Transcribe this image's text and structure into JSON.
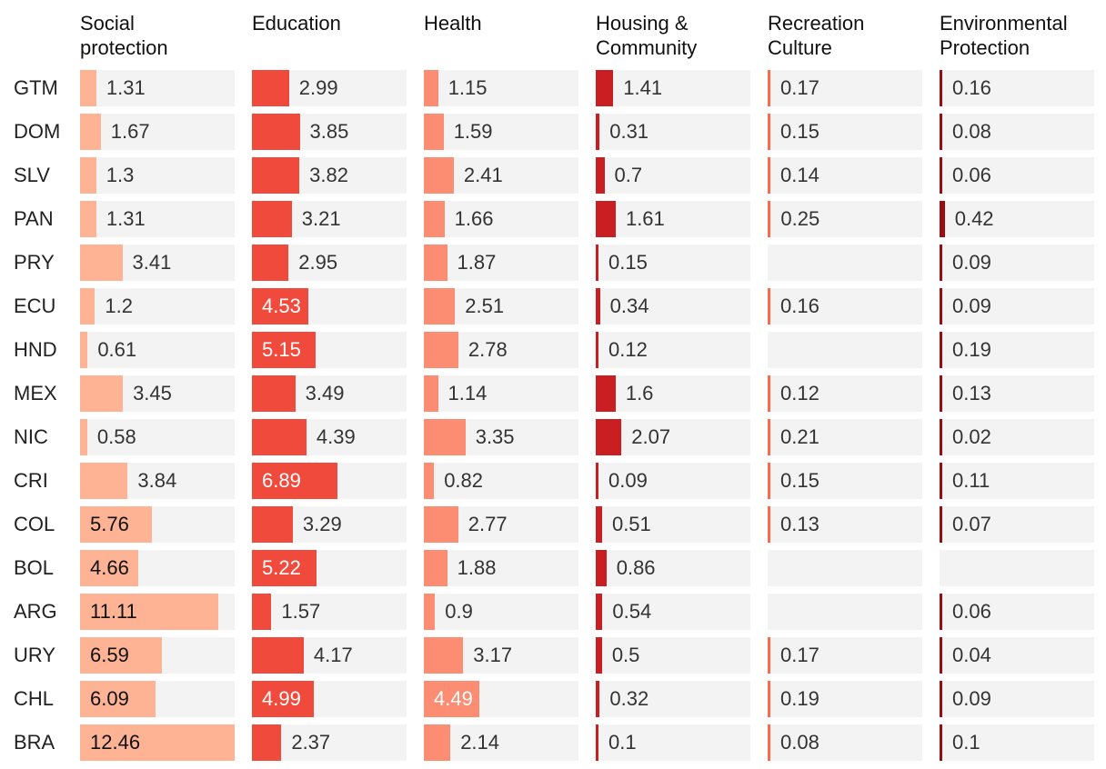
{
  "chart_data": {
    "type": "table",
    "columns": [
      {
        "name": "Social\nprotection",
        "color": "#fdb394"
      },
      {
        "name": "Education",
        "color": "#ef4a3b"
      },
      {
        "name": "Health",
        "color": "#fc8d72"
      },
      {
        "name": "Housing &\nCommunity",
        "color": "#ca1f22"
      },
      {
        "name": "Recreation\nCulture",
        "color": "#fb6a4a"
      },
      {
        "name": "Environmental\nProtection",
        "color": "#9b0c11"
      }
    ],
    "rows": [
      {
        "country": "GTM",
        "values": [
          1.31,
          2.99,
          1.15,
          1.41,
          0.17,
          0.16
        ]
      },
      {
        "country": "DOM",
        "values": [
          1.67,
          3.85,
          1.59,
          0.31,
          0.15,
          0.08
        ]
      },
      {
        "country": "SLV",
        "values": [
          1.3,
          3.82,
          2.41,
          0.7,
          0.14,
          0.06
        ]
      },
      {
        "country": "PAN",
        "values": [
          1.31,
          3.21,
          1.66,
          1.61,
          0.25,
          0.42
        ]
      },
      {
        "country": "PRY",
        "values": [
          3.41,
          2.95,
          1.87,
          0.15,
          null,
          0.09
        ]
      },
      {
        "country": "ECU",
        "values": [
          1.2,
          4.53,
          2.51,
          0.34,
          0.16,
          0.09
        ]
      },
      {
        "country": "HND",
        "values": [
          0.61,
          5.15,
          2.78,
          0.12,
          null,
          0.19
        ]
      },
      {
        "country": "MEX",
        "values": [
          3.45,
          3.49,
          1.14,
          1.6,
          0.12,
          0.13
        ]
      },
      {
        "country": "NIC",
        "values": [
          0.58,
          4.39,
          3.35,
          2.07,
          0.21,
          0.02
        ]
      },
      {
        "country": "CRI",
        "values": [
          3.84,
          6.89,
          0.82,
          0.09,
          0.15,
          0.11
        ]
      },
      {
        "country": "COL",
        "values": [
          5.76,
          3.29,
          2.77,
          0.51,
          0.13,
          0.07
        ]
      },
      {
        "country": "BOL",
        "values": [
          4.66,
          5.22,
          1.88,
          0.86,
          null,
          null
        ]
      },
      {
        "country": "ARG",
        "values": [
          11.11,
          1.57,
          0.9,
          0.54,
          null,
          0.06
        ]
      },
      {
        "country": "URY",
        "values": [
          6.59,
          4.17,
          3.17,
          0.5,
          0.17,
          0.04
        ]
      },
      {
        "country": "CHL",
        "values": [
          6.09,
          4.99,
          4.49,
          0.32,
          0.19,
          0.09
        ]
      },
      {
        "country": "BRA",
        "values": [
          12.46,
          2.37,
          2.14,
          0.1,
          0.08,
          0.1
        ]
      }
    ]
  }
}
